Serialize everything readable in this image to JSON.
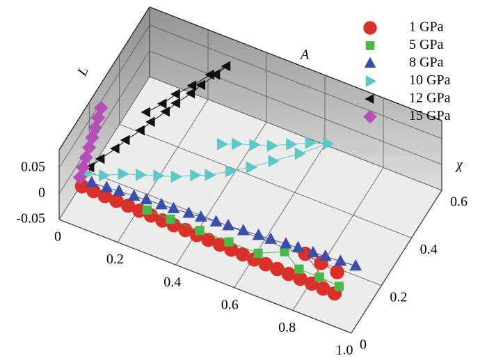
{
  "chart_data": {
    "type": "scatter3d",
    "xlabel": "A",
    "ylabel": "χ",
    "zlabel": "L",
    "xlim": [
      0,
      1
    ],
    "ylim": [
      0,
      0.6
    ],
    "zlim": [
      -0.05,
      0.085
    ],
    "xticks": [
      0,
      0.2,
      0.4,
      0.6,
      0.8,
      {
        "value": 1,
        "label": "1.0"
      }
    ],
    "yticks": [
      0,
      0.2,
      0.4,
      0.6
    ],
    "zticks": [
      -0.05,
      0,
      0.05
    ],
    "grid": true,
    "legend": "upper right",
    "series": [
      {
        "name": "1 GPa",
        "color": "#d9302a",
        "marker": "circle",
        "x": [
          0.05,
          0.09,
          0.13,
          0.17,
          0.21,
          0.25,
          0.29,
          0.33,
          0.37,
          0.41,
          0.45,
          0.49,
          0.53,
          0.57,
          0.61,
          0.65,
          0.69,
          0.73,
          0.77,
          0.81,
          0.85,
          0.89,
          0.93,
          0.78,
          0.84,
          0.9
        ],
        "y": [
          0.055,
          0.054,
          0.052,
          0.051,
          0.05,
          0.048,
          0.047,
          0.045,
          0.044,
          0.043,
          0.041,
          0.04,
          0.039,
          0.037,
          0.036,
          0.034,
          0.033,
          0.032,
          0.03,
          0.029,
          0.028,
          0.026,
          0.025,
          0.12,
          0.11,
          0.1
        ],
        "z": [
          0,
          0,
          0,
          0,
          0,
          0,
          0,
          0,
          0,
          0,
          0,
          0,
          0,
          0,
          0,
          0,
          0,
          0,
          0,
          0,
          0,
          0,
          0,
          0,
          0,
          0
        ]
      },
      {
        "name": "5 GPa",
        "color": "#4cb848",
        "marker": "square",
        "x": [
          0.27,
          0.35,
          0.45,
          0.55,
          0.65,
          0.72,
          0.79,
          0.86,
          0.93
        ],
        "y": [
          0.06,
          0.06,
          0.06,
          0.06,
          0.06,
          0.1,
          0.06,
          0.06,
          0.055
        ],
        "z": [
          0,
          0,
          0,
          0,
          0,
          0,
          0,
          0,
          0
        ]
      },
      {
        "name": "8 GPa",
        "color": "#3c4fa8",
        "marker": "triangle-up",
        "x": [
          0.07,
          0.12,
          0.16,
          0.21,
          0.25,
          0.3,
          0.34,
          0.39,
          0.43,
          0.48,
          0.52,
          0.57,
          0.62,
          0.66,
          0.71,
          0.75,
          0.8,
          0.84,
          0.89,
          0.94
        ],
        "y": [
          0.08,
          0.083,
          0.087,
          0.09,
          0.094,
          0.097,
          0.1,
          0.104,
          0.107,
          0.111,
          0.114,
          0.117,
          0.121,
          0.124,
          0.128,
          0.131,
          0.134,
          0.138,
          0.141,
          0.145
        ],
        "z": [
          0,
          0,
          0,
          0,
          0,
          0,
          0,
          0,
          0,
          0,
          0,
          0,
          0,
          0,
          0,
          0,
          0,
          0,
          0,
          0
        ]
      },
      {
        "name": "10 GPa",
        "color": "#5ec8c8",
        "marker": "triangle-right",
        "x": [
          0.04,
          0.09,
          0.14,
          0.19,
          0.24,
          0.29,
          0.34,
          0.38,
          0.43,
          0.48,
          0.53,
          0.59,
          0.65,
          0.6,
          0.55,
          0.5,
          0.45,
          0.4,
          0.36
        ],
        "y": [
          0.1,
          0.12,
          0.15,
          0.17,
          0.19,
          0.21,
          0.24,
          0.26,
          0.3,
          0.34,
          0.39,
          0.45,
          0.52,
          0.5,
          0.47,
          0.44,
          0.42,
          0.4,
          0.38
        ],
        "z": [
          0,
          0,
          0,
          0,
          0,
          0,
          0,
          0,
          0,
          0,
          0,
          0,
          0,
          0,
          0,
          0,
          0,
          0,
          0
        ]
      },
      {
        "name": "12 GPa",
        "color": "#111111",
        "marker": "triangle-left",
        "x": [
          0.04,
          0.06,
          0.09,
          0.11,
          0.14,
          0.16,
          0.19,
          0.21,
          0.24,
          0.26,
          0.29,
          0.31,
          0.28,
          0.25,
          0.22,
          0.2,
          0.17
        ],
        "y": [
          0.13,
          0.16,
          0.2,
          0.23,
          0.27,
          0.3,
          0.34,
          0.37,
          0.41,
          0.44,
          0.48,
          0.51,
          0.46,
          0.4,
          0.35,
          0.3,
          0.25
        ],
        "z": [
          0,
          0.007,
          0.015,
          0.022,
          0.029,
          0.036,
          0.044,
          0.051,
          0.058,
          0.065,
          0.073,
          0.08,
          0.08,
          0.08,
          0.08,
          0.08,
          0.08
        ]
      },
      {
        "name": "15 GPa",
        "color": "#b44fb8",
        "marker": "diamond",
        "x": [
          0.02,
          0.02,
          0.02,
          0.02,
          0.02,
          0.02,
          0.02,
          0.02
        ],
        "y": [
          0.1,
          0.12,
          0.14,
          0.16,
          0.18,
          0.2,
          0.22,
          0.24
        ],
        "z": [
          -0.01,
          0,
          0.01,
          0.02,
          0.03,
          0.04,
          0.05,
          0.06
        ]
      }
    ]
  }
}
